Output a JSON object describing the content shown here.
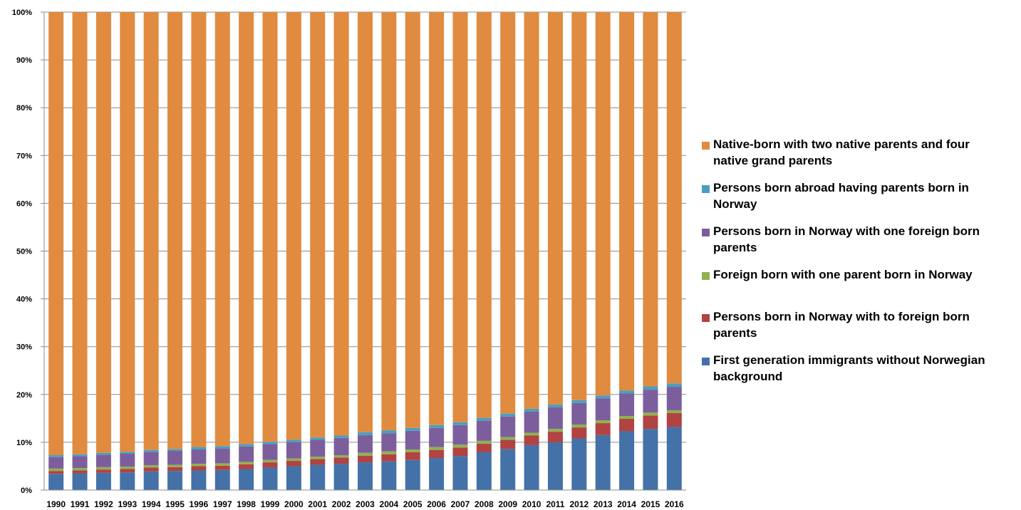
{
  "chart_data": {
    "type": "bar",
    "stacked": true,
    "normalized": true,
    "categories": [
      "1990",
      "1991",
      "1992",
      "1993",
      "1994",
      "1995",
      "1996",
      "1997",
      "1998",
      "1999",
      "2000",
      "2001",
      "2002",
      "2003",
      "2004",
      "2005",
      "2006",
      "2007",
      "2008",
      "2009",
      "2010",
      "2011",
      "2012",
      "2013",
      "2014",
      "2015",
      "2016"
    ],
    "y_ticks": [
      "0%",
      "10%",
      "20%",
      "30%",
      "40%",
      "50%",
      "60%",
      "70%",
      "80%",
      "90%",
      "100%"
    ],
    "ylim": [
      0,
      100
    ],
    "grid": true,
    "legend_position": "right",
    "series": [
      {
        "name": "First generation immigrants without Norwegian background",
        "color": "#4472A8",
        "values": [
          3.4,
          3.5,
          3.6,
          3.7,
          3.9,
          4.0,
          4.1,
          4.2,
          4.4,
          4.7,
          5.0,
          5.3,
          5.5,
          5.8,
          6.0,
          6.3,
          6.7,
          7.1,
          7.9,
          8.6,
          9.4,
          10.0,
          10.8,
          11.5,
          12.3,
          12.8,
          13.2
        ]
      },
      {
        "name": "Persons born in Norway with to foreign born parents",
        "color": "#B14342",
        "values": [
          0.6,
          0.6,
          0.7,
          0.7,
          0.8,
          0.8,
          0.9,
          0.9,
          1.0,
          1.1,
          1.1,
          1.2,
          1.3,
          1.4,
          1.5,
          1.6,
          1.7,
          1.8,
          1.8,
          1.9,
          2.0,
          2.2,
          2.3,
          2.5,
          2.6,
          2.8,
          2.9
        ]
      },
      {
        "name": "Foreign born with one parent born in Norway",
        "color": "#8FB24F",
        "values": [
          0.5,
          0.5,
          0.5,
          0.5,
          0.5,
          0.5,
          0.5,
          0.5,
          0.5,
          0.5,
          0.5,
          0.5,
          0.5,
          0.6,
          0.6,
          0.6,
          0.6,
          0.6,
          0.6,
          0.6,
          0.6,
          0.6,
          0.6,
          0.6,
          0.6,
          0.6,
          0.6
        ]
      },
      {
        "name": "Persons born in Norway with one foreign born parents",
        "color": "#7D5E9D",
        "values": [
          2.4,
          2.5,
          2.6,
          2.7,
          2.8,
          2.9,
          3.0,
          3.1,
          3.2,
          3.3,
          3.4,
          3.5,
          3.6,
          3.7,
          3.8,
          3.9,
          4.0,
          4.1,
          4.2,
          4.3,
          4.4,
          4.5,
          4.5,
          4.6,
          4.7,
          4.8,
          4.9
        ]
      },
      {
        "name": "Persons born abroad having parents born in Norway",
        "color": "#4A9FC0",
        "values": [
          0.4,
          0.4,
          0.4,
          0.4,
          0.4,
          0.4,
          0.5,
          0.5,
          0.5,
          0.5,
          0.5,
          0.5,
          0.5,
          0.6,
          0.6,
          0.6,
          0.6,
          0.6,
          0.6,
          0.6,
          0.6,
          0.6,
          0.6,
          0.6,
          0.6,
          0.7,
          0.7
        ]
      },
      {
        "name": "Native-born with two native parents and four native grand parents",
        "color": "#E08B3F",
        "values": [
          92.7,
          92.5,
          92.2,
          92.0,
          91.6,
          91.4,
          91.0,
          90.8,
          90.4,
          89.9,
          89.5,
          89.0,
          88.6,
          87.9,
          87.5,
          87.0,
          86.4,
          85.8,
          84.9,
          84.0,
          83.0,
          82.1,
          81.2,
          80.2,
          79.2,
          78.3,
          77.7
        ]
      }
    ]
  }
}
